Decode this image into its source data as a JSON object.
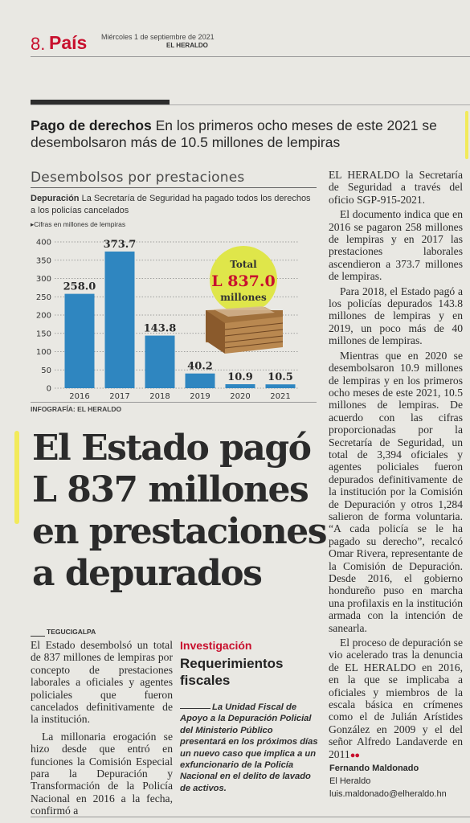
{
  "header": {
    "page_number": "8.",
    "section": "País",
    "date": "Miércoles 1 de septiembre de 2021",
    "publication": "EL HERALDO"
  },
  "kicker": {
    "label": "Pago de derechos",
    "text": "En los primeros ocho meses de este 2021 se desembolsaron más de 10.5 millones de lempiras"
  },
  "infographic": {
    "title": "Desembolsos por prestaciones",
    "lead_label": "Depuración",
    "lead_text": "La Secretaría de Seguridad ha pagado todos los derechos a los policías cancelados",
    "unit_note": "Cifras en millones de lempiras",
    "total_label": "Total",
    "total_value": "L 837.0",
    "total_unit": "millones",
    "credit": "INFOGRAFÍA: EL HERALDO"
  },
  "chart_data": {
    "type": "bar",
    "categories": [
      "2016",
      "2017",
      "2018",
      "2019",
      "2020",
      "2021"
    ],
    "values": [
      258.0,
      373.7,
      143.8,
      40.2,
      10.9,
      10.5
    ],
    "value_labels": [
      "258.0",
      "373.7",
      "143.8",
      "40.2",
      "10.9",
      "10.5"
    ],
    "yticks": [
      "0",
      "50",
      "100",
      "150",
      "200",
      "250",
      "300",
      "350",
      "400"
    ],
    "ylim": [
      0,
      400
    ],
    "grid": true,
    "bar_color": "#2f86c0",
    "title": "",
    "xlabel": "",
    "ylabel": ""
  },
  "headline": "El Estado pagó L 837 millones en prestaciones a depurados",
  "dateline": "TEGUCIGALPA",
  "col1": [
    "El Estado desembolsó un total de 837 millones de lempiras por concepto de prestaciones laborales a oficiales y agentes policiales que fueron cancelados definitivamente de la institución.",
    "La millonaria erogación se hizo desde que entró en funciones la Comisión Especial para la Depuración y Transformación de la Policía Nacional en 2016 a la fecha, confirmó a"
  ],
  "sidebar": {
    "kicker": "Investigación",
    "title": "Requerimientos fiscales",
    "body": "La Unidad Fiscal de Apoyo a la Depuración Policial del Ministerio Público presentará en los próximos días un nuevo caso que implica a un exfuncionario de la Policía Nacional en el delito de lavado de activos."
  },
  "col3": [
    "EL HERALDO la Secretaría de Seguridad a través del oficio SGP-915-2021.",
    "El documento indica que en 2016 se pagaron 258 millones de lempiras y en 2017 las prestaciones laborales ascendieron a 373.7 millones de lempiras.",
    "Para 2018, el Estado pagó a los policías depurados 143.8 millones de lempiras y en 2019, un poco más de 40 millones de lempiras.",
    "Mientras que en 2020 se desembolsaron 10.9 millones de lempiras y en los primeros ocho meses de este 2021, 10.5 millones de lempiras. De acuerdo con las cifras proporcionadas por la Secretaría de Seguridad, un total de 3,394 oficiales y agentes policiales fueron depurados definitivamente de la institución por la Comisión de Depuración y otros 1,284 salieron de forma voluntaria. “A cada policía se le ha pagado su derecho”, recalcó Omar Rivera, representante de la Comisión de Depuración. Desde 2016, el gobierno hondureño puso en marcha una profilaxis en la institución armada con la intención de sanearla.",
    "El proceso de depuración se vio acelerado tras la denuncia de EL HERALDO en 2016, en la que se implicaba a oficiales y miembros de la escala básica en crímenes como el de Julián Arístides González en 2009 y el del señor Alfredo Landaverde en 2011"
  ],
  "byline": {
    "name": "Fernando Maldonado",
    "outlet": "El Heraldo",
    "email": "luis.maldonado@elheraldo.hn"
  },
  "colors": {
    "accent_red": "#c8102e",
    "bar_blue": "#2f86c0",
    "badge_yellow": "#dfe64a",
    "highlighter": "#f2ea5a"
  }
}
